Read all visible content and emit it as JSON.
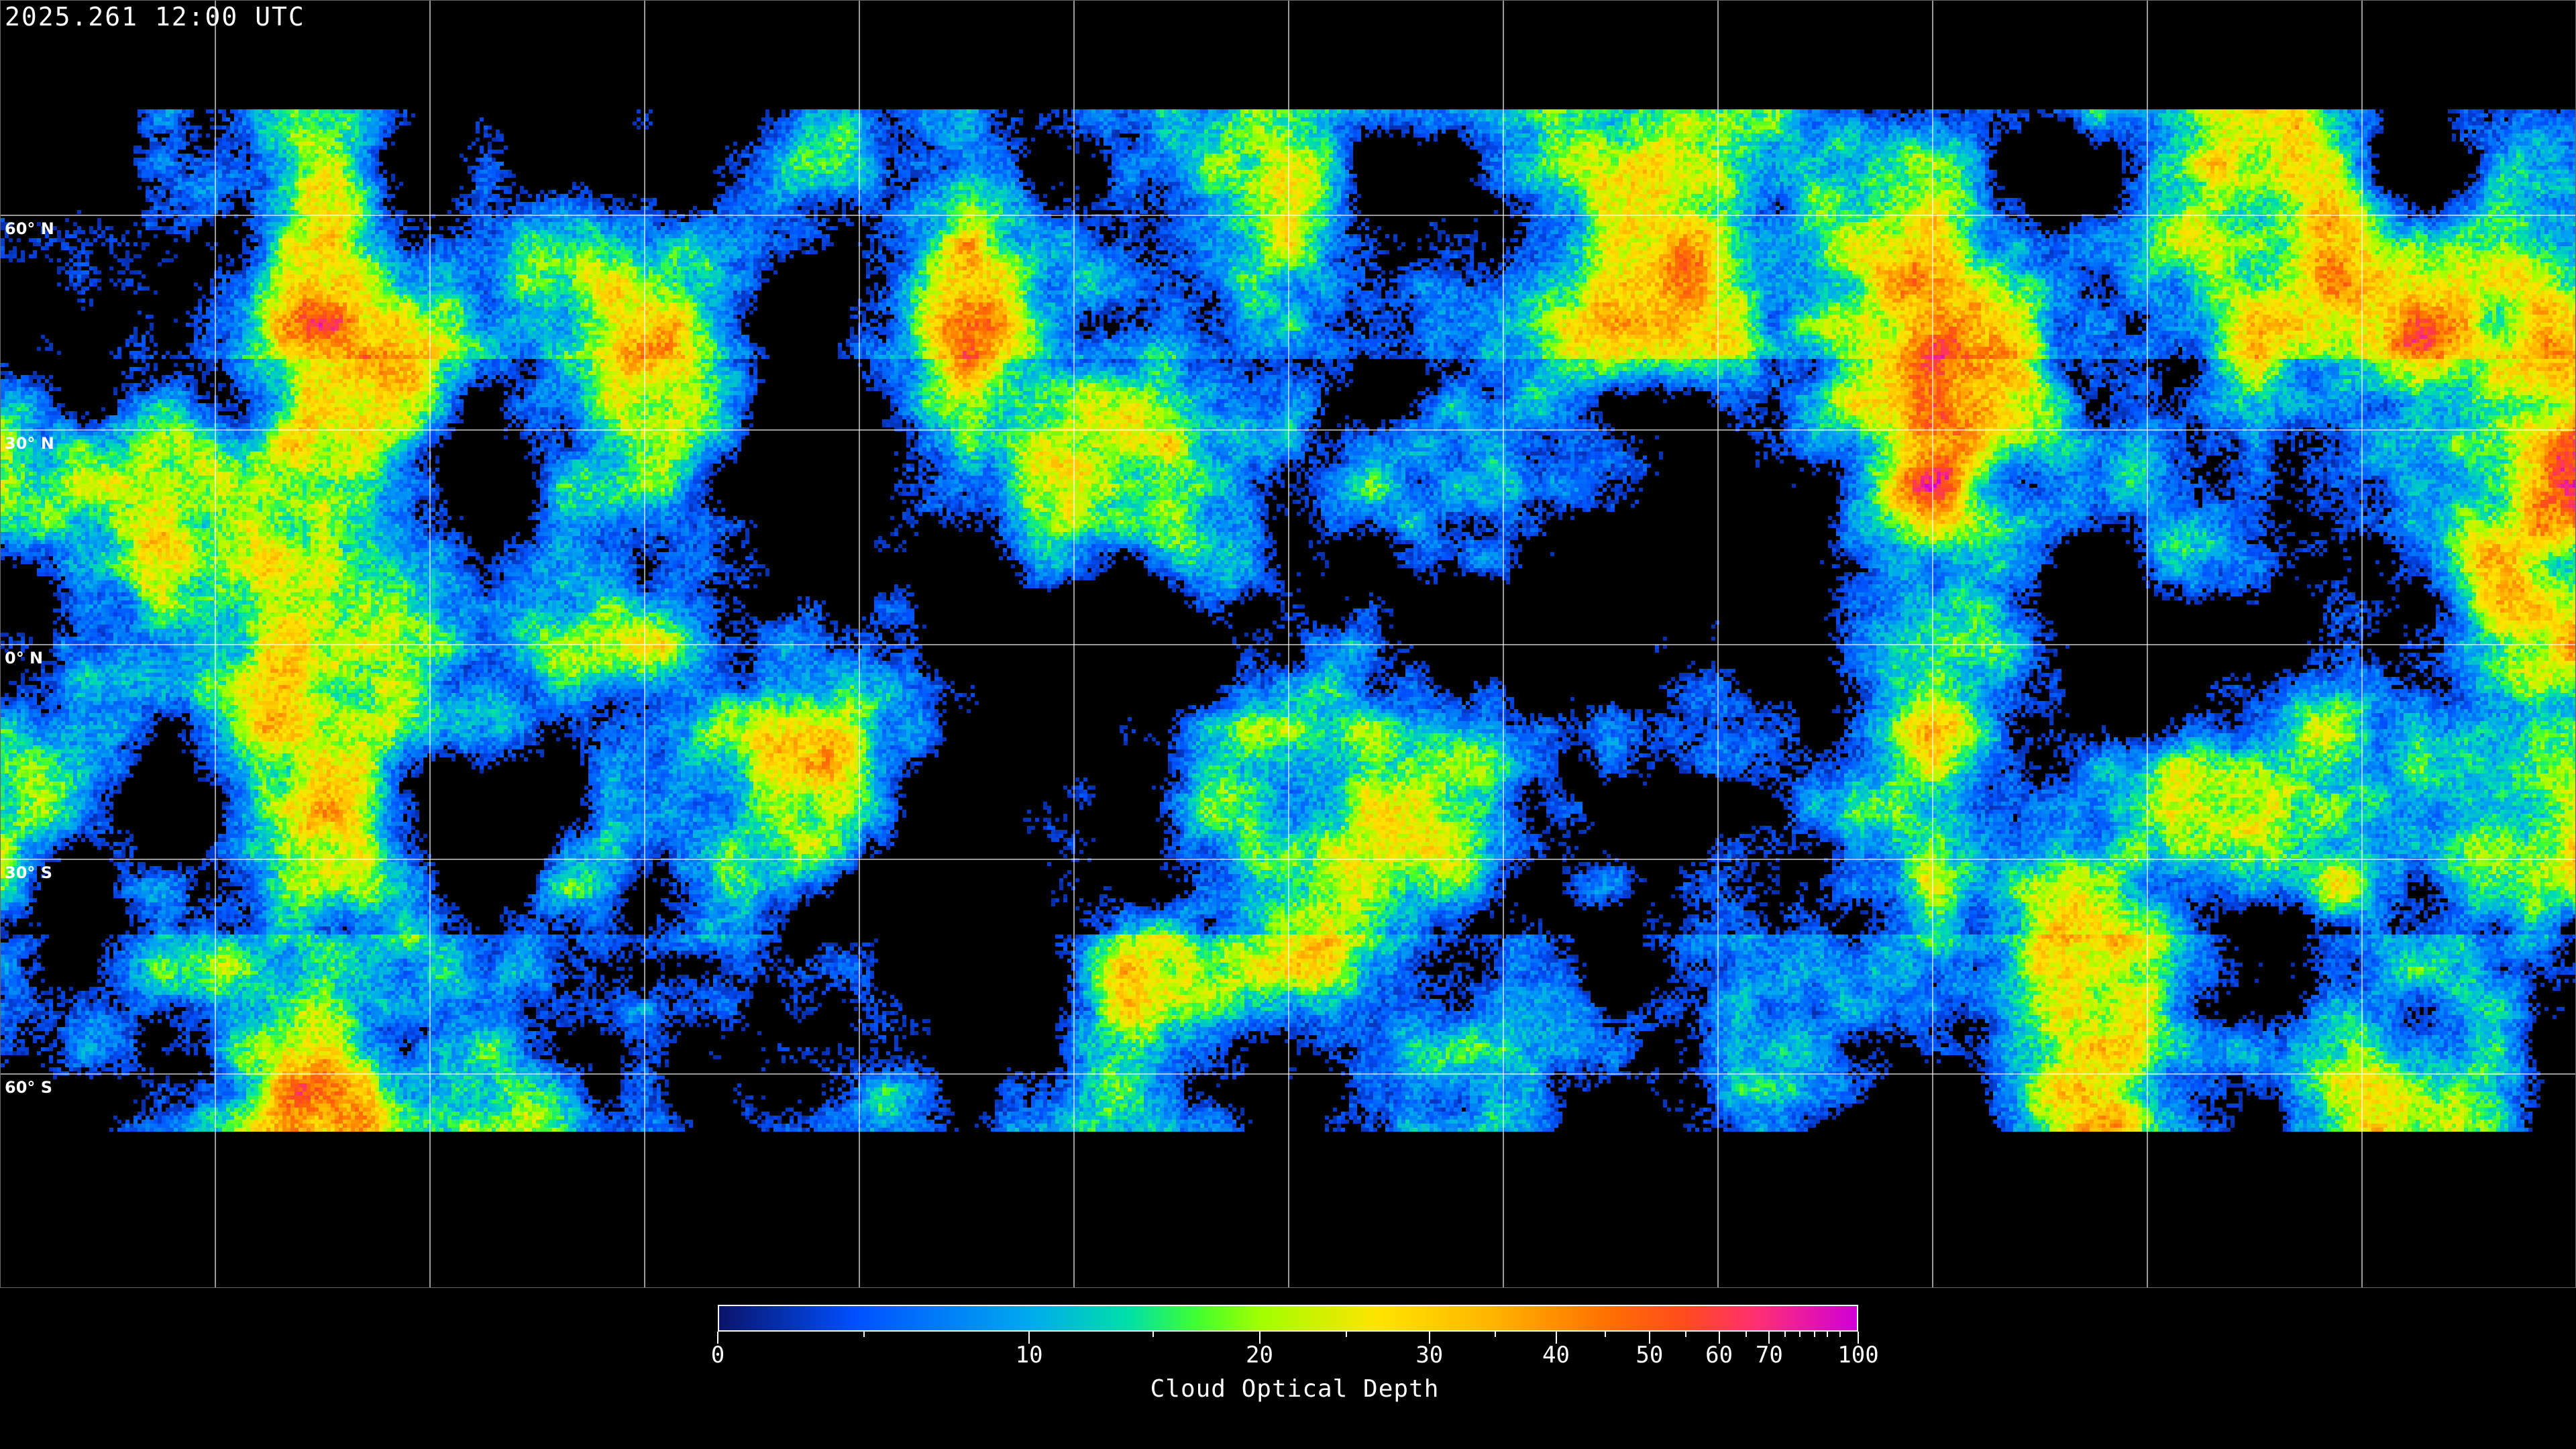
{
  "timestamp": "2025.261 12:00 UTC",
  "map": {
    "projection": "equirectangular",
    "graticule_spacing_deg": 30,
    "lat_labels": [
      "60° N",
      "30° N",
      "0° N",
      "30° S",
      "60° S"
    ],
    "lat_values": [
      60,
      30,
      0,
      -30,
      -60
    ],
    "coastline_color": "#ffffff",
    "grid_color": "#ffffff"
  },
  "colorbar": {
    "title": "Cloud Optical Depth",
    "range": [
      0,
      100
    ],
    "tick_labels": [
      "0",
      "10",
      "20",
      "30",
      "40",
      "50",
      "60",
      "70",
      "100"
    ],
    "tick_values": [
      0,
      10,
      20,
      30,
      40,
      50,
      60,
      70,
      100
    ],
    "tick_fractions": [
      0,
      0.273,
      0.475,
      0.624,
      0.735,
      0.817,
      0.878,
      0.922,
      1
    ],
    "minor_tick_fractions": [
      0.128,
      0.382,
      0.551,
      0.682,
      0.778,
      0.849,
      0.902,
      0.936,
      0.949,
      0.962,
      0.973,
      0.984
    ],
    "colors": [
      "#0a146a",
      "#0050ff",
      "#00a8f0",
      "#00e0a8",
      "#40ff30",
      "#a0ff00",
      "#ffe400",
      "#ffb400",
      "#ff7000",
      "#ff4a1e",
      "#ff3070",
      "#d000d8"
    ],
    "color_positions": [
      0,
      0.12,
      0.27,
      0.36,
      0.42,
      0.475,
      0.58,
      0.68,
      0.78,
      0.85,
      0.91,
      1
    ]
  }
}
